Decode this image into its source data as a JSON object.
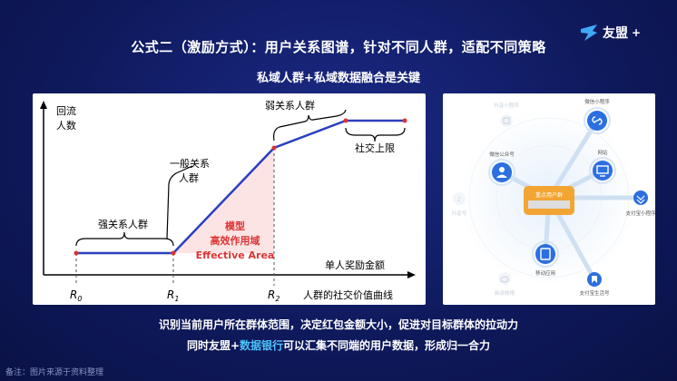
{
  "slide": {
    "title": "公式二（激励方式）：用户关系图谱，针对不同人群，适配不同策略",
    "subtitle": "私域人群+私域数据融合是关键",
    "logo_text": "友盟",
    "logo_plus": "+"
  },
  "relation_chart": {
    "y_axis_label_line1": "回流",
    "y_axis_label_line2": "人数",
    "x_axis_label": "单人奖励金额",
    "curve_caption": "人群的社交价值曲线",
    "segment_strong": "强关系人群",
    "segment_general_line1": "一般关系",
    "segment_general_line2": "人群",
    "segment_weak": "弱关系人群",
    "social_cap": "社交上限",
    "model_line1": "模型",
    "model_line2": "高效作用域",
    "model_line3": "Effective Area",
    "ticks": [
      "R",
      "R",
      "R"
    ],
    "tick_subs": [
      "0",
      "1",
      "2"
    ]
  },
  "network_diagram": {
    "center_label": "重点用户群",
    "nodes": [
      {
        "label": "微信小程序",
        "icon": "link-icon"
      },
      {
        "label": "网站",
        "icon": "monitor-icon"
      },
      {
        "label": "支付宝小程序",
        "icon": "alipay-icon"
      },
      {
        "label": "支付宝生活号",
        "icon": "bookmark-icon"
      },
      {
        "label": "移动应用",
        "icon": "tablet-icon"
      },
      {
        "label": "微信公众号",
        "icon": "user-icon"
      }
    ],
    "faded_nodes": [
      {
        "label": "抖音小程序",
        "icon": "grid-icon"
      },
      {
        "label": "抖音号",
        "icon": "tiktok-icon"
      },
      {
        "label": "新浪微博",
        "icon": "weibo-icon"
      }
    ]
  },
  "captions": {
    "line1": "识别当前用户所在群体范围，决定红包金额大小，促进对目标群体的拉动力",
    "line2_prefix": "同时友盟+",
    "line2_highlight": "数据银行",
    "line2_suffix": "可以汇集不同端的用户数据，形成归一合力"
  },
  "footnote": "备注：图片来源于资料整理"
}
